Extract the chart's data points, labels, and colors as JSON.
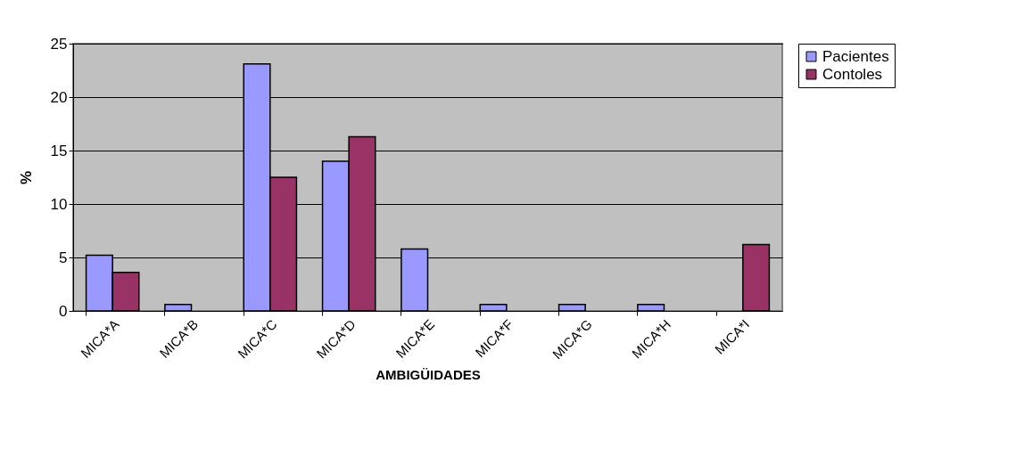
{
  "chart_data": {
    "type": "bar",
    "xlabel": "AMBIGÜIDADES",
    "ylabel": "%",
    "categories": [
      "MICA*A",
      "MICA*B",
      "MICA*C",
      "MICA*D",
      "MICA*E",
      "MICA*F",
      "MICA*G",
      "MICA*H",
      "MICA*I"
    ],
    "series": [
      {
        "name": "Pacientes",
        "color": "#9999ff",
        "values": [
          5.2,
          0.6,
          23.1,
          14.0,
          5.8,
          0.6,
          0.6,
          0.6,
          null
        ]
      },
      {
        "name": "Contoles",
        "color": "#993366",
        "values": [
          3.6,
          null,
          12.5,
          16.3,
          null,
          null,
          null,
          null,
          6.2
        ]
      }
    ],
    "ylim": [
      0,
      25
    ],
    "yticks": [
      0,
      5,
      10,
      15,
      20,
      25
    ],
    "grid": "y",
    "legend": "right"
  }
}
